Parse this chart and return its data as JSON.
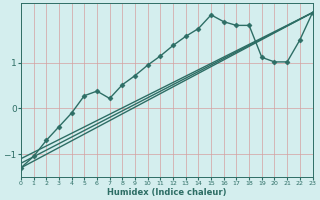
{
  "xlabel": "Humidex (Indice chaleur)",
  "ylabel": "",
  "bg_color": "#d4eeee",
  "line_color": "#2d6e65",
  "grid_color": "#d4a0a0",
  "xlim": [
    0,
    23
  ],
  "ylim": [
    -1.5,
    2.3
  ],
  "yticks": [
    -1,
    0,
    1
  ],
  "xticks": [
    0,
    1,
    2,
    3,
    4,
    5,
    6,
    7,
    8,
    9,
    10,
    11,
    12,
    13,
    14,
    15,
    16,
    17,
    18,
    19,
    20,
    21,
    22,
    23
  ],
  "series": [
    {
      "x": [
        0,
        1,
        2,
        3,
        4,
        5,
        6,
        7,
        8,
        9,
        10,
        11,
        12,
        13,
        14,
        15,
        16,
        17,
        18,
        19,
        20,
        21,
        22,
        23
      ],
      "y": [
        -1.3,
        -1.05,
        -0.7,
        -0.4,
        -0.1,
        0.28,
        0.38,
        0.22,
        0.52,
        0.72,
        0.95,
        1.15,
        1.38,
        1.58,
        1.75,
        2.05,
        1.9,
        1.82,
        1.82,
        1.12,
        1.02,
        1.02,
        1.5,
        2.1
      ],
      "marker": "D",
      "ms": 2.5,
      "lw": 1.0
    },
    {
      "x": [
        0,
        23
      ],
      "y": [
        -1.3,
        2.1
      ],
      "marker": null,
      "ms": 0,
      "lw": 1.0
    },
    {
      "x": [
        0,
        23
      ],
      "y": [
        -1.2,
        2.1
      ],
      "marker": null,
      "ms": 0,
      "lw": 1.0
    },
    {
      "x": [
        0,
        23
      ],
      "y": [
        -1.1,
        2.1
      ],
      "marker": null,
      "ms": 0,
      "lw": 1.0
    }
  ]
}
